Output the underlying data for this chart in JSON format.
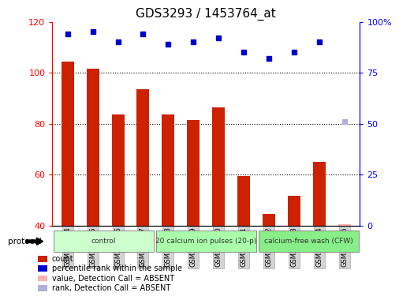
{
  "title": "GDS3293 / 1453764_at",
  "samples": [
    "GSM296814",
    "GSM296815",
    "GSM296816",
    "GSM296817",
    "GSM296818",
    "GSM296819",
    "GSM296820",
    "GSM296821",
    "GSM296822",
    "GSM296823",
    "GSM296824",
    "GSM296825"
  ],
  "bar_values": [
    104.5,
    101.5,
    83.5,
    93.5,
    83.5,
    81.5,
    86.5,
    59.5,
    44.5,
    51.5,
    65.0,
    40.5
  ],
  "bar_absent": [
    false,
    false,
    false,
    false,
    false,
    false,
    false,
    false,
    false,
    false,
    false,
    true
  ],
  "percentile_values": [
    94,
    95,
    90,
    94,
    89,
    90,
    92,
    85,
    82,
    85,
    90,
    51
  ],
  "percentile_absent": [
    false,
    false,
    false,
    false,
    false,
    false,
    false,
    false,
    false,
    false,
    false,
    true
  ],
  "ylim_left": [
    40,
    120
  ],
  "ylim_right": [
    0,
    100
  ],
  "left_ticks": [
    40,
    60,
    80,
    100,
    120
  ],
  "right_ticks": [
    0,
    25,
    50,
    75,
    100
  ],
  "right_tick_labels": [
    "0",
    "25",
    "50",
    "75",
    "100%"
  ],
  "bar_color": "#cc2200",
  "bar_absent_color": "#ffb0b0",
  "dot_color": "#0000cc",
  "dot_absent_color": "#b0b0dd",
  "groups": [
    {
      "label": "control",
      "start": 0,
      "end": 4,
      "color": "#ccffcc"
    },
    {
      "label": "20 calcium ion pulses (20-p)",
      "start": 4,
      "end": 8,
      "color": "#aaffaa"
    },
    {
      "label": "calcium-free wash (CFW)",
      "start": 8,
      "end": 12,
      "color": "#88ee88"
    }
  ],
  "legend_items": [
    {
      "label": "count",
      "color": "#cc2200"
    },
    {
      "label": "percentile rank within the sample",
      "color": "#0000cc"
    },
    {
      "label": "value, Detection Call = ABSENT",
      "color": "#ffb0b0"
    },
    {
      "label": "rank, Detection Call = ABSENT",
      "color": "#b0b0dd"
    }
  ],
  "bg_color": "#ffffff",
  "figsize": [
    5.13,
    3.84
  ],
  "dpi": 100
}
